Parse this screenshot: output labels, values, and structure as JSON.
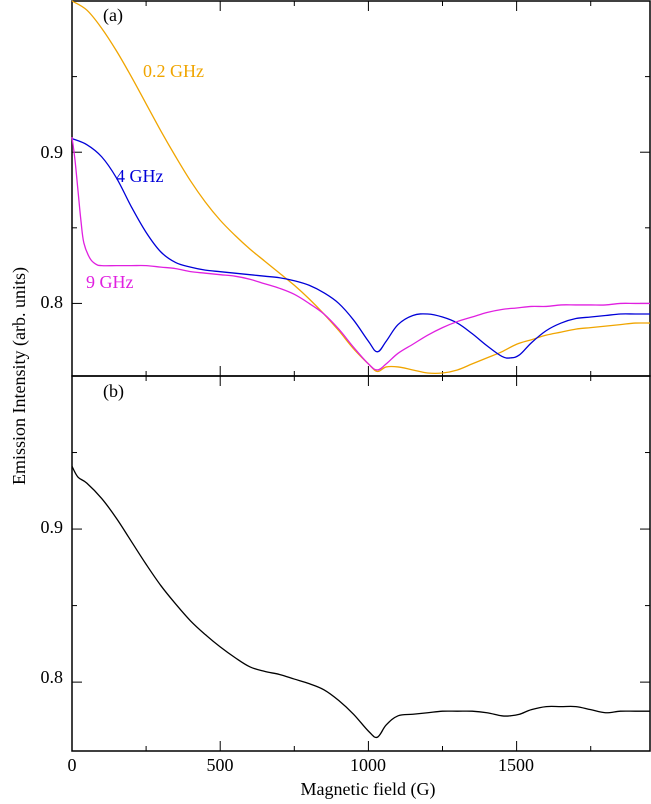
{
  "chart_data": [
    {
      "type": "line",
      "panel": "(a)",
      "xlabel": "Magnetic field (G)",
      "ylabel": "Emission Intensity (arb. units)",
      "xlim": [
        0,
        1950
      ],
      "ylim": [
        0.752,
        1.0
      ],
      "xticks": [
        0,
        500,
        1000,
        1500
      ],
      "yticks": [
        0.8,
        0.9
      ],
      "ytick_labels": [
        "0.8",
        "0.9"
      ],
      "grid": false,
      "legend": "inline curve labels",
      "series": [
        {
          "name": "0.2 GHz",
          "color": "#f0a500",
          "x": [
            0,
            50,
            100,
            150,
            200,
            250,
            300,
            350,
            400,
            450,
            500,
            550,
            600,
            650,
            700,
            750,
            800,
            850,
            900,
            950,
            1000,
            1030,
            1060,
            1100,
            1150,
            1200,
            1250,
            1300,
            1350,
            1400,
            1450,
            1500,
            1550,
            1600,
            1650,
            1700,
            1750,
            1800,
            1850,
            1900,
            1950
          ],
          "y": [
            1.0,
            0.994,
            0.982,
            0.967,
            0.95,
            0.932,
            0.914,
            0.897,
            0.881,
            0.867,
            0.855,
            0.845,
            0.836,
            0.828,
            0.82,
            0.812,
            0.803,
            0.793,
            0.782,
            0.77,
            0.76,
            0.755,
            0.758,
            0.758,
            0.756,
            0.754,
            0.754,
            0.756,
            0.76,
            0.764,
            0.768,
            0.773,
            0.776,
            0.779,
            0.781,
            0.783,
            0.784,
            0.785,
            0.786,
            0.787,
            0.787
          ]
        },
        {
          "name": "4 GHz",
          "color": "#0000d8",
          "x": [
            0,
            50,
            100,
            150,
            200,
            250,
            300,
            350,
            400,
            450,
            500,
            550,
            600,
            650,
            700,
            750,
            800,
            850,
            900,
            950,
            1000,
            1030,
            1060,
            1100,
            1150,
            1200,
            1250,
            1300,
            1350,
            1400,
            1450,
            1480,
            1510,
            1550,
            1600,
            1650,
            1700,
            1750,
            1800,
            1850,
            1900,
            1950
          ],
          "y": [
            0.909,
            0.905,
            0.897,
            0.883,
            0.864,
            0.847,
            0.834,
            0.827,
            0.824,
            0.822,
            0.821,
            0.82,
            0.819,
            0.818,
            0.817,
            0.815,
            0.812,
            0.807,
            0.8,
            0.789,
            0.775,
            0.768,
            0.775,
            0.786,
            0.792,
            0.793,
            0.791,
            0.787,
            0.78,
            0.772,
            0.765,
            0.764,
            0.766,
            0.774,
            0.782,
            0.787,
            0.79,
            0.791,
            0.792,
            0.793,
            0.793,
            0.793
          ]
        },
        {
          "name": "9 GHz",
          "color": "#e020e0",
          "x": [
            0,
            10,
            20,
            30,
            40,
            60,
            80,
            100,
            150,
            200,
            250,
            300,
            350,
            400,
            450,
            500,
            550,
            600,
            650,
            700,
            750,
            800,
            850,
            900,
            950,
            1000,
            1030,
            1060,
            1100,
            1150,
            1200,
            1250,
            1300,
            1350,
            1400,
            1450,
            1500,
            1550,
            1600,
            1650,
            1700,
            1750,
            1800,
            1850,
            1900,
            1950
          ],
          "y": [
            0.91,
            0.895,
            0.875,
            0.855,
            0.84,
            0.83,
            0.826,
            0.825,
            0.825,
            0.825,
            0.825,
            0.824,
            0.823,
            0.821,
            0.82,
            0.819,
            0.818,
            0.816,
            0.813,
            0.81,
            0.806,
            0.8,
            0.793,
            0.783,
            0.771,
            0.76,
            0.756,
            0.76,
            0.767,
            0.773,
            0.779,
            0.784,
            0.788,
            0.791,
            0.794,
            0.796,
            0.797,
            0.798,
            0.798,
            0.799,
            0.799,
            0.799,
            0.799,
            0.8,
            0.8,
            0.8
          ]
        }
      ],
      "labels": [
        "0.2 GHz",
        "4 GHz",
        "9 GHz"
      ]
    },
    {
      "type": "line",
      "panel": "(b)",
      "xlabel": "Magnetic field (G)",
      "ylabel": "",
      "xlim": [
        0,
        1950
      ],
      "ylim": [
        0.755,
        1.0
      ],
      "xticks": [
        0,
        500,
        1000,
        1500
      ],
      "xtick_labels": [
        "0",
        "500",
        "1000",
        "1500"
      ],
      "yticks": [
        0.8,
        0.9
      ],
      "ytick_labels": [
        "0.8",
        "0.9"
      ],
      "grid": false,
      "series": [
        {
          "name": "",
          "color": "#000000",
          "x": [
            0,
            20,
            50,
            100,
            150,
            200,
            250,
            300,
            350,
            400,
            450,
            500,
            550,
            600,
            650,
            700,
            750,
            800,
            850,
            900,
            950,
            1000,
            1030,
            1060,
            1100,
            1150,
            1200,
            1250,
            1300,
            1350,
            1400,
            1450,
            1480,
            1510,
            1550,
            1600,
            1650,
            1700,
            1750,
            1800,
            1850,
            1900,
            1950
          ],
          "y": [
            0.941,
            0.934,
            0.93,
            0.92,
            0.907,
            0.892,
            0.877,
            0.863,
            0.851,
            0.84,
            0.831,
            0.823,
            0.816,
            0.81,
            0.807,
            0.805,
            0.802,
            0.799,
            0.795,
            0.788,
            0.779,
            0.768,
            0.764,
            0.772,
            0.778,
            0.779,
            0.78,
            0.781,
            0.781,
            0.781,
            0.78,
            0.778,
            0.778,
            0.779,
            0.782,
            0.784,
            0.784,
            0.784,
            0.782,
            0.78,
            0.781,
            0.781,
            0.781
          ]
        }
      ]
    }
  ]
}
